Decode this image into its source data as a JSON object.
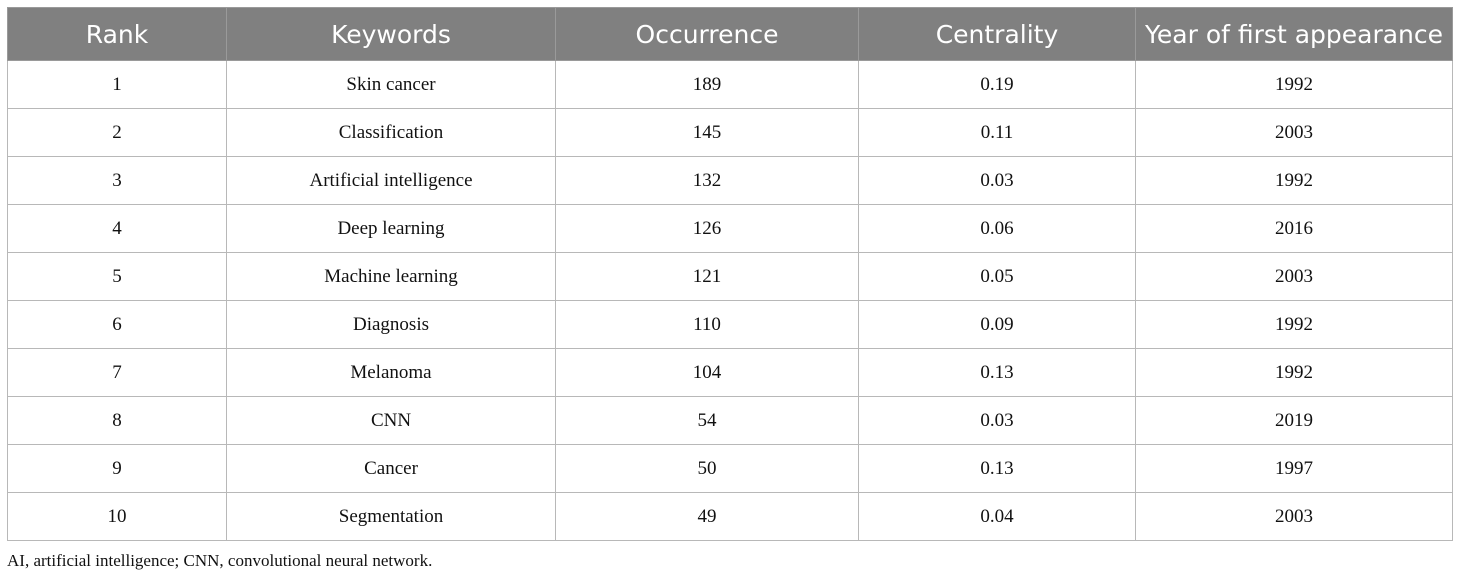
{
  "table": {
    "headers": [
      "Rank",
      "Keywords",
      "Occurrence",
      "Centrality",
      "Year of first appearance"
    ],
    "rows": [
      [
        "1",
        "Skin cancer",
        "189",
        "0.19",
        "1992"
      ],
      [
        "2",
        "Classification",
        "145",
        "0.11",
        "2003"
      ],
      [
        "3",
        "Artificial intelligence",
        "132",
        "0.03",
        "1992"
      ],
      [
        "4",
        "Deep learning",
        "126",
        "0.06",
        "2016"
      ],
      [
        "5",
        "Machine learning",
        "121",
        "0.05",
        "2003"
      ],
      [
        "6",
        "Diagnosis",
        "110",
        "0.09",
        "1992"
      ],
      [
        "7",
        "Melanoma",
        "104",
        "0.13",
        "1992"
      ],
      [
        "8",
        "CNN",
        "54",
        "0.03",
        "2019"
      ],
      [
        "9",
        "Cancer",
        "50",
        "0.13",
        "1997"
      ],
      [
        "10",
        "Segmentation",
        "49",
        "0.04",
        "2003"
      ]
    ]
  },
  "footnote": "AI, artificial intelligence; CNN, convolutional neural network.",
  "colors": {
    "header_bg": "#808080",
    "header_text": "#ffffff",
    "grid": "#b8b8b8"
  }
}
